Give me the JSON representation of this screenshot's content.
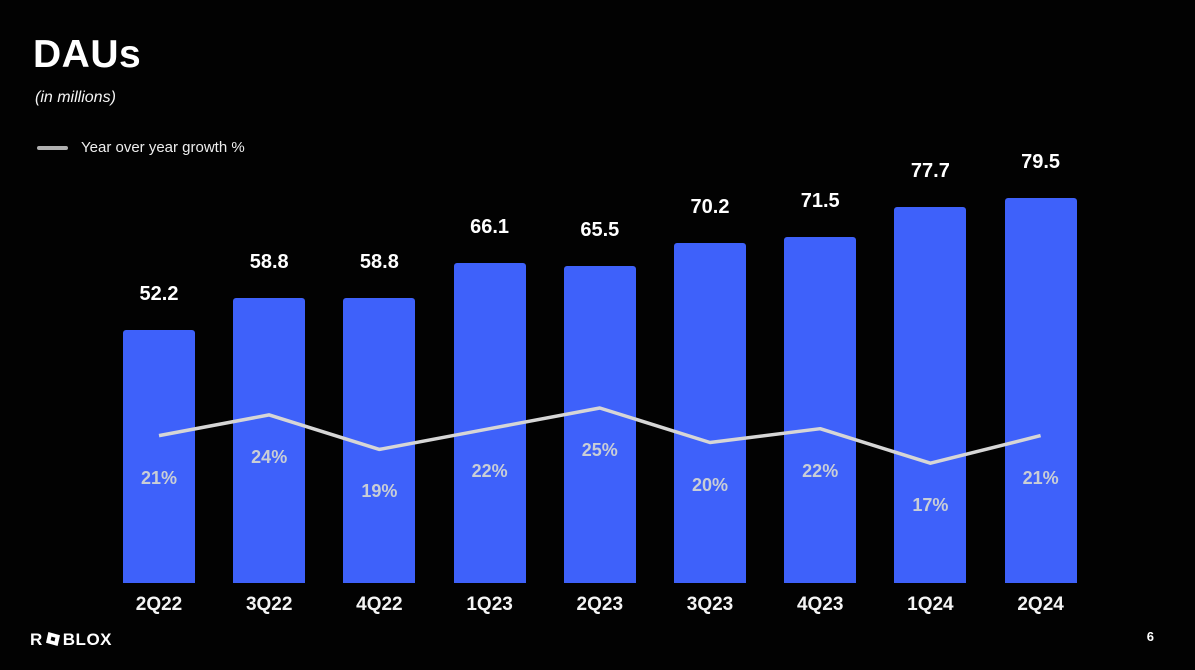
{
  "slide": {
    "title": "DAUs",
    "subtitle": "(in millions)",
    "page_number": "6",
    "brand_prefix": "R",
    "brand_suffix": "BLOX",
    "brand_full": "ROBLOX"
  },
  "legend": {
    "label": "Year over year growth %"
  },
  "colors": {
    "background": "#020202",
    "bar": "#3e61fa",
    "line": "#d6d6d6",
    "legend_swatch": "#b0b0b0",
    "value_label": "#ffffff",
    "pct_label": "#c9ced6",
    "axis_label": "#f4f4f4"
  },
  "chart_data": {
    "type": "bar",
    "title": "DAUs",
    "subtitle": "(in millions)",
    "categories": [
      "2Q22",
      "3Q22",
      "4Q22",
      "1Q23",
      "2Q23",
      "3Q23",
      "4Q23",
      "1Q24",
      "2Q24"
    ],
    "series": [
      {
        "name": "DAUs",
        "type": "bar",
        "unit": "millions",
        "values": [
          52.2,
          58.8,
          58.8,
          66.1,
          65.5,
          70.2,
          71.5,
          77.7,
          79.5
        ],
        "labels": [
          "52.2",
          "58.8",
          "58.8",
          "66.1",
          "65.5",
          "70.2",
          "71.5",
          "77.7",
          "79.5"
        ]
      },
      {
        "name": "Year over year growth %",
        "type": "line",
        "unit": "percent",
        "values": [
          21,
          24,
          19,
          22,
          25,
          20,
          22,
          17,
          21
        ],
        "labels": [
          "21%",
          "24%",
          "19%",
          "22%",
          "25%",
          "20%",
          "22%",
          "17%",
          "21%"
        ]
      }
    ],
    "ylim": [
      0,
      120
    ],
    "grid": false,
    "axes_hidden": true,
    "legend_position": "top-left",
    "value_labels_position": "above-bars",
    "pct_labels_position": "inside-bars-below-line"
  }
}
